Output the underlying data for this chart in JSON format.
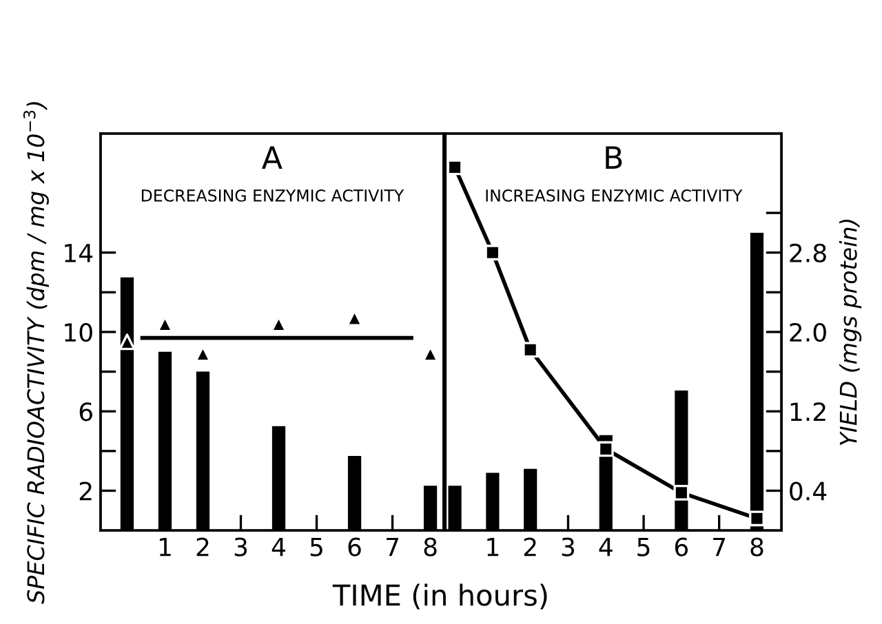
{
  "chart_data": [
    {
      "type": "bar",
      "title": "A",
      "subtitle": "DECREASING ENZYMIC ACTIVITY",
      "xlabel": "TIME (in hours)",
      "ylabel": "SPECIFIC RADIOACTIVITY (dpm / mg x 10$^{−3}$)",
      "xlim": [
        -0.7,
        8.35
      ],
      "xticks": [
        1,
        2,
        3,
        4,
        5,
        6,
        7,
        8
      ],
      "ylim": [
        0,
        20
      ],
      "yticks": [
        2,
        {
          "value": 4,
          "label": null
        },
        6,
        {
          "value": 8,
          "label": null
        },
        10,
        {
          "value": 12,
          "label": null
        },
        14
      ],
      "y2lim": [
        0,
        4
      ],
      "series": [
        {
          "axis": "y2",
          "color": "#000000",
          "x": [
            0,
            1,
            2,
            4,
            6,
            8
          ],
          "values": [
            2.55,
            1.8,
            1.6,
            1.05,
            0.75,
            0.45
          ]
        },
        {
          "type": "scatter",
          "marker": "triangle",
          "color": "#000000",
          "x": [
            0,
            1,
            2,
            4,
            6,
            8
          ],
          "values": [
            9.5,
            10.4,
            8.9,
            10.4,
            10.7,
            8.9
          ]
        },
        {
          "type": "line",
          "color": "#000000",
          "x": [
            0.4,
            7.5
          ],
          "values": [
            9.7,
            9.7
          ]
        }
      ]
    },
    {
      "type": "bar",
      "title": "B",
      "subtitle": "INCREASING ENZYMIC ACTIVITY",
      "y2label": "YIELD (mgs protein)",
      "xlim": [
        -0.25,
        8.65
      ],
      "xticks": [
        1,
        2,
        3,
        4,
        5,
        6,
        7,
        8
      ],
      "ylim": [
        0,
        20
      ],
      "y2lim": [
        0,
        4
      ],
      "y2ticks": [
        0.4,
        {
          "value": 0.8,
          "label": null
        },
        1.2,
        {
          "value": 1.6,
          "label": null
        },
        {
          "value": 2.0,
          "label": "2.0"
        },
        {
          "value": 2.4,
          "label": null
        },
        2.8,
        {
          "value": 3.2,
          "label": null
        }
      ],
      "series": [
        {
          "axis": "y2",
          "color": "#000000",
          "x": [
            0,
            1,
            2,
            4,
            6,
            8
          ],
          "values": [
            0.45,
            0.58,
            0.62,
            0.96,
            1.41,
            3.0
          ]
        },
        {
          "type": "line",
          "marker": "square",
          "color": "#000000",
          "x": [
            0,
            1,
            2,
            4,
            6,
            8
          ],
          "values": [
            18.3,
            14.0,
            9.1,
            4.1,
            1.9,
            0.6
          ]
        }
      ]
    }
  ]
}
